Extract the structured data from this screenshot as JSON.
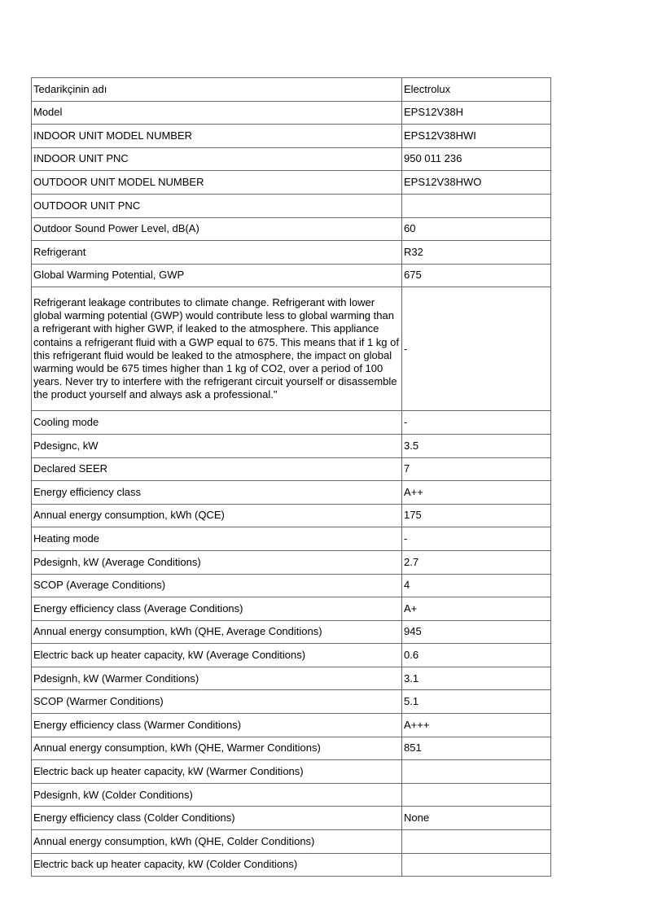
{
  "rows": [
    {
      "label": "Tedarikçinin adı",
      "value": "Electrolux"
    },
    {
      "label": "Model",
      "value": "EPS12V38H"
    },
    {
      "label": "INDOOR UNIT MODEL NUMBER",
      "value": "EPS12V38HWI"
    },
    {
      "label": "INDOOR UNIT PNC",
      "value": "950 011 236"
    },
    {
      "label": "OUTDOOR UNIT MODEL NUMBER",
      "value": "EPS12V38HWO"
    },
    {
      "label": "OUTDOOR UNIT PNC",
      "value": ""
    },
    {
      "label": "Outdoor Sound Power Level, dB(A)",
      "value": "60"
    },
    {
      "label": "Refrigerant",
      "value": "R32"
    },
    {
      "label": "Global Warming Potential, GWP",
      "value": "675"
    },
    {
      "label": "Refrigerant leakage contributes to climate change. Refrigerant with lower global warming potential (GWP) would contribute less to global warming than a refrigerant with higher GWP, if leaked to the atmosphere. This appliance contains a refrigerant fluid with a GWP equal to 675. This means that if 1 kg of this refrigerant fluid would be leaked to the atmosphere, the impact on global warming would be 675 times higher than 1 kg of CO2, over a period of 100 years. Never try to interfere with the refrigerant circuit yourself or disassemble the product yourself and always ask a professional.\"",
      "value": "-"
    },
    {
      "label": "Cooling mode",
      "value": "-"
    },
    {
      "label": "Pdesignc, kW",
      "value": "3.5"
    },
    {
      "label": "Declared SEER",
      "value": "7"
    },
    {
      "label": "Energy efficiency class",
      "value": "A++"
    },
    {
      "label": "Annual energy consumption, kWh (QCE)",
      "value": "175"
    },
    {
      "label": "Heating mode",
      "value": "-"
    },
    {
      "label": "Pdesignh, kW (Average Conditions)",
      "value": "2.7"
    },
    {
      "label": "SCOP (Average Conditions)",
      "value": "4"
    },
    {
      "label": "Energy efficiency class (Average Conditions)",
      "value": "A+"
    },
    {
      "label": "Annual energy consumption, kWh (QHE, Average Conditions)",
      "value": "945"
    },
    {
      "label": "Electric back up heater capacity, kW (Average Conditions)",
      "value": "0.6"
    },
    {
      "label": "Pdesignh, kW (Warmer Conditions)",
      "value": "3.1"
    },
    {
      "label": "SCOP (Warmer Conditions)",
      "value": "5.1"
    },
    {
      "label": "Energy efficiency class (Warmer Conditions)",
      "value": "A+++"
    },
    {
      "label": "Annual energy consumption, kWh (QHE, Warmer Conditions)",
      "value": "851"
    },
    {
      "label": "Electric back up heater capacity, kW (Warmer Conditions)",
      "value": ""
    },
    {
      "label": "Pdesignh, kW (Colder Conditions)",
      "value": ""
    },
    {
      "label": "Energy efficiency class (Colder Conditions)",
      "value": "None"
    },
    {
      "label": "Annual energy consumption, kWh (QHE, Colder Conditions)",
      "value": ""
    },
    {
      "label": "Electric back up heater capacity, kW (Colder Conditions)",
      "value": ""
    }
  ]
}
